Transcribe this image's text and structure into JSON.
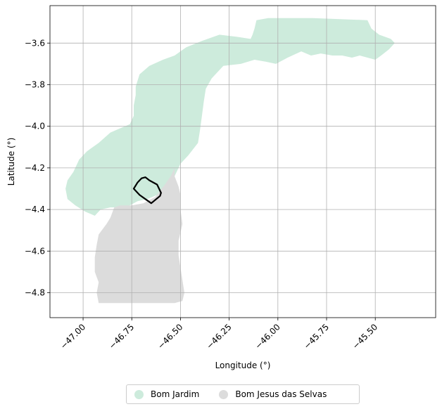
{
  "chart_data": {
    "type": "map",
    "xlabel": "Longitude (°)",
    "ylabel": "Latitude (°)",
    "xlim": [
      -47.17,
      -45.19
    ],
    "ylim": [
      -4.92,
      -3.42
    ],
    "x_ticks": [
      -47.0,
      -46.75,
      -46.5,
      -46.25,
      -46.0,
      -45.75,
      -45.5
    ],
    "x_tick_labels": [
      "−47.00",
      "−46.75",
      "−46.50",
      "−46.25",
      "−46.00",
      "−45.75",
      "−45.50"
    ],
    "y_ticks": [
      -3.6,
      -3.8,
      -4.0,
      -4.2,
      -4.4,
      -4.6,
      -4.8
    ],
    "y_tick_labels": [
      "−3.6",
      "−3.8",
      "−4.0",
      "−4.2",
      "−4.4",
      "−4.6",
      "−4.8"
    ],
    "grid": true,
    "legend_position": "bottom-center",
    "regions": [
      {
        "name": "Bom Jardim",
        "color": "#cdebdc",
        "coords": [
          [
            -47.09,
            -4.3
          ],
          [
            -47.08,
            -4.26
          ],
          [
            -47.05,
            -4.22
          ],
          [
            -47.02,
            -4.16
          ],
          [
            -46.98,
            -4.12
          ],
          [
            -46.92,
            -4.08
          ],
          [
            -46.86,
            -4.03
          ],
          [
            -46.81,
            -4.01
          ],
          [
            -46.76,
            -3.99
          ],
          [
            -46.74,
            -3.95
          ],
          [
            -46.74,
            -3.9
          ],
          [
            -46.73,
            -3.85
          ],
          [
            -46.73,
            -3.81
          ],
          [
            -46.71,
            -3.75
          ],
          [
            -46.66,
            -3.71
          ],
          [
            -46.59,
            -3.68
          ],
          [
            -46.53,
            -3.66
          ],
          [
            -46.47,
            -3.62
          ],
          [
            -46.39,
            -3.59
          ],
          [
            -46.3,
            -3.56
          ],
          [
            -46.21,
            -3.57
          ],
          [
            -46.14,
            -3.58
          ],
          [
            -46.13,
            -3.56
          ],
          [
            -46.12,
            -3.53
          ],
          [
            -46.11,
            -3.49
          ],
          [
            -46.05,
            -3.48
          ],
          [
            -45.82,
            -3.48
          ],
          [
            -45.54,
            -3.49
          ],
          [
            -45.52,
            -3.53
          ],
          [
            -45.48,
            -3.56
          ],
          [
            -45.42,
            -3.58
          ],
          [
            -45.4,
            -3.6
          ],
          [
            -45.43,
            -3.63
          ],
          [
            -45.47,
            -3.66
          ],
          [
            -45.5,
            -3.68
          ],
          [
            -45.54,
            -3.67
          ],
          [
            -45.58,
            -3.66
          ],
          [
            -45.62,
            -3.67
          ],
          [
            -45.67,
            -3.66
          ],
          [
            -45.72,
            -3.66
          ],
          [
            -45.78,
            -3.65
          ],
          [
            -45.83,
            -3.66
          ],
          [
            -45.88,
            -3.64
          ],
          [
            -45.95,
            -3.67
          ],
          [
            -46.01,
            -3.7
          ],
          [
            -46.06,
            -3.69
          ],
          [
            -46.12,
            -3.68
          ],
          [
            -46.19,
            -3.7
          ],
          [
            -46.28,
            -3.71
          ],
          [
            -46.34,
            -3.77
          ],
          [
            -46.37,
            -3.82
          ],
          [
            -46.38,
            -3.88
          ],
          [
            -46.39,
            -3.95
          ],
          [
            -46.4,
            -4.02
          ],
          [
            -46.41,
            -4.08
          ],
          [
            -46.46,
            -4.14
          ],
          [
            -46.5,
            -4.18
          ],
          [
            -46.52,
            -4.22
          ],
          [
            -46.53,
            -4.24
          ],
          [
            -46.57,
            -4.28
          ],
          [
            -46.62,
            -4.33
          ],
          [
            -46.67,
            -4.35
          ],
          [
            -46.72,
            -4.36
          ],
          [
            -46.76,
            -4.38
          ],
          [
            -46.81,
            -4.39
          ],
          [
            -46.86,
            -4.39
          ],
          [
            -46.91,
            -4.4
          ],
          [
            -46.94,
            -4.43
          ],
          [
            -46.99,
            -4.41
          ],
          [
            -47.04,
            -4.38
          ],
          [
            -47.08,
            -4.35
          ],
          [
            -47.09,
            -4.3
          ]
        ]
      },
      {
        "name": "Bom Jesus das Selvas",
        "color": "#dcdcdc",
        "coords": [
          [
            -46.53,
            -4.2
          ],
          [
            -46.53,
            -4.24
          ],
          [
            -46.51,
            -4.29
          ],
          [
            -46.5,
            -4.33
          ],
          [
            -46.5,
            -4.4
          ],
          [
            -46.49,
            -4.47
          ],
          [
            -46.51,
            -4.55
          ],
          [
            -46.51,
            -4.62
          ],
          [
            -46.5,
            -4.68
          ],
          [
            -46.49,
            -4.74
          ],
          [
            -46.48,
            -4.8
          ],
          [
            -46.49,
            -4.84
          ],
          [
            -46.53,
            -4.85
          ],
          [
            -46.92,
            -4.85
          ],
          [
            -46.93,
            -4.8
          ],
          [
            -46.92,
            -4.75
          ],
          [
            -46.94,
            -4.7
          ],
          [
            -46.94,
            -4.63
          ],
          [
            -46.93,
            -4.57
          ],
          [
            -46.92,
            -4.52
          ],
          [
            -46.88,
            -4.47
          ],
          [
            -46.86,
            -4.44
          ],
          [
            -46.84,
            -4.39
          ],
          [
            -46.81,
            -4.38
          ],
          [
            -46.75,
            -4.38
          ],
          [
            -46.69,
            -4.37
          ],
          [
            -46.63,
            -4.34
          ],
          [
            -46.58,
            -4.28
          ],
          [
            -46.55,
            -4.24
          ],
          [
            -46.53,
            -4.2
          ]
        ]
      }
    ],
    "outline": {
      "color": "#000000",
      "coords": [
        [
          -46.7,
          -4.25
        ],
        [
          -46.68,
          -4.245
        ],
        [
          -46.66,
          -4.26
        ],
        [
          -46.64,
          -4.27
        ],
        [
          -46.62,
          -4.28
        ],
        [
          -46.6,
          -4.32
        ],
        [
          -46.605,
          -4.335
        ],
        [
          -46.65,
          -4.37
        ],
        [
          -46.68,
          -4.35
        ],
        [
          -46.71,
          -4.33
        ],
        [
          -46.74,
          -4.3
        ],
        [
          -46.72,
          -4.27
        ],
        [
          -46.7,
          -4.25
        ]
      ]
    }
  },
  "legend": {
    "items": [
      {
        "label": "Bom Jardim",
        "color": "#cdebdc"
      },
      {
        "label": "Bom Jesus das Selvas",
        "color": "#dcdcdc"
      }
    ]
  }
}
